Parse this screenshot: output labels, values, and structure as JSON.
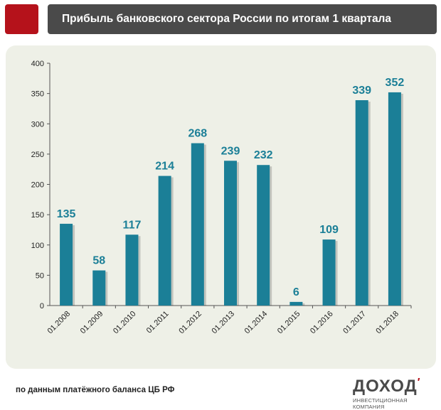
{
  "header": {
    "title": "Прибыль банковского сектора России по итогам 1 квартала"
  },
  "footer": {
    "source": "по данным  платёжного баланса ЦБ РФ",
    "brand_name": "ДОХОД",
    "brand_mark": "′",
    "brand_tagline": "ИНВЕСТИЦИОННАЯ КОМПАНИЯ"
  },
  "colors": {
    "bar": "#1b7f97",
    "label": "#1b7f97",
    "brand_red": "#b5121b",
    "title_bar": "#4a4a4a",
    "panel": "#eef0e7"
  },
  "chart_data": {
    "type": "bar",
    "title": "Прибыль банковского сектора России по итогам 1 квартала",
    "categories": [
      "01.2008",
      "01.2009",
      "01.2010",
      "01.2011",
      "01.2012",
      "01.2013",
      "01.2014",
      "01.2015",
      "01.2016",
      "01.2017",
      "01.2018"
    ],
    "values": [
      135,
      58,
      117,
      214,
      268,
      239,
      232,
      6,
      109,
      339,
      352
    ],
    "ylim": [
      0,
      400
    ],
    "yticks": [
      0,
      50,
      100,
      150,
      200,
      250,
      300,
      350,
      400
    ],
    "grid": false,
    "data_labels": true
  }
}
